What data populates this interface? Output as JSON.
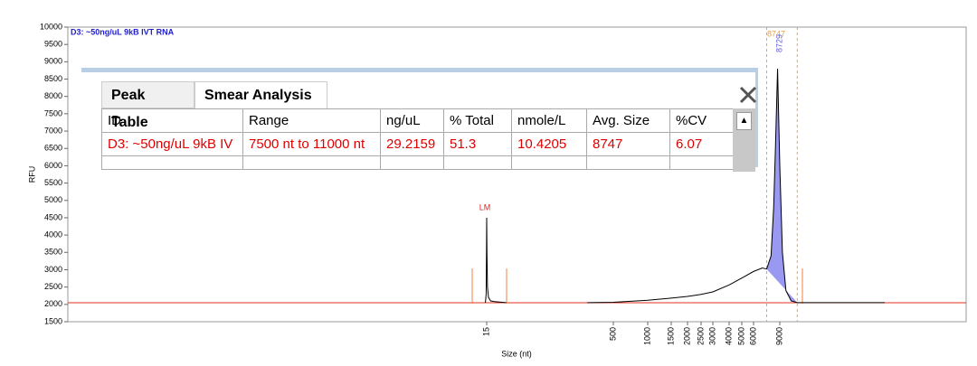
{
  "chart_data": {
    "type": "line",
    "title": "D3: ~50ng/uL 9kB IVT RNA",
    "xlabel": "Size (nt)",
    "ylabel": "RFU",
    "ylim": [
      1500,
      10000
    ],
    "yticks": [
      1500,
      2000,
      2500,
      3000,
      3500,
      4000,
      4500,
      5000,
      5500,
      6000,
      6500,
      7000,
      7500,
      8000,
      8500,
      9000,
      9500,
      10000
    ],
    "xticks": [
      15,
      500,
      1000,
      1500,
      2000,
      2500,
      3000,
      4000,
      5000,
      6000,
      9000
    ],
    "x": [
      10,
      13,
      14,
      15,
      16,
      18,
      22,
      30,
      45,
      90,
      null,
      400,
      500,
      1000,
      1500,
      2000,
      2500,
      3000,
      4000,
      5000,
      6000,
      7000,
      7500,
      8000,
      8300,
      8500,
      8747,
      9000,
      9300,
      9700,
      10300,
      11000,
      21000
    ],
    "values": [
      2050,
      2300,
      3300,
      4500,
      3500,
      2500,
      2200,
      2100,
      2080,
      2050,
      null,
      2050,
      2060,
      2120,
      2180,
      2230,
      2290,
      2360,
      2560,
      2760,
      2950,
      3050,
      3020,
      3400,
      4800,
      6500,
      8800,
      6000,
      3500,
      2400,
      2100,
      2050,
      2050
    ],
    "color": "#000000",
    "smear": [
      7500,
      11000
    ],
    "smear_color": "#8080ee",
    "peak_labels": [
      "LM",
      "8747",
      "8729"
    ]
  },
  "table": {
    "tabs": [
      "Peak Table",
      "Smear Analysis"
    ],
    "columns": [
      "ID",
      "Range",
      "ng/uL",
      "% Total",
      "nmole/L",
      "Avg. Size",
      "%CV"
    ],
    "rows": [
      [
        "D3: ~50ng/uL 9kB IV",
        "7500 nt to 11000 nt",
        "29.2159",
        "51.3",
        "10.4205",
        "8747",
        "6.07"
      ]
    ]
  }
}
